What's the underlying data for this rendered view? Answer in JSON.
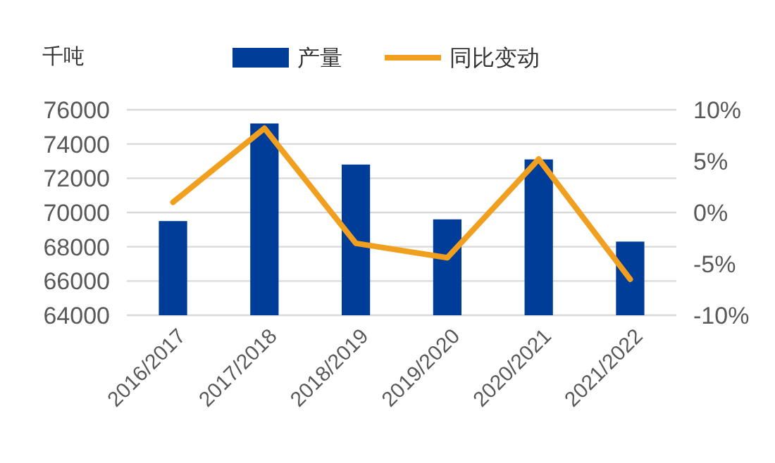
{
  "chart_data": {
    "type": "bar",
    "ylabel": "千吨",
    "categories": [
      "2016/2017",
      "2017/2018",
      "2018/2019",
      "2019/2020",
      "2020/2021",
      "2021/2022"
    ],
    "series": [
      {
        "name": "产量",
        "color": "#003d99",
        "values": [
          69500,
          75200,
          72800,
          69600,
          73100,
          68300
        ]
      },
      {
        "name": "同比变动",
        "type": "line",
        "axis": "y2",
        "color": "#f0a01e",
        "values": [
          1,
          8.2,
          -3,
          -4.4,
          5.2,
          -6.5
        ]
      }
    ],
    "ylim": [
      64000,
      76000
    ],
    "yticks": [
      64000,
      66000,
      68000,
      70000,
      72000,
      74000,
      76000
    ],
    "y2lim": [
      -10,
      10
    ],
    "y2ticks": [
      {
        "value": -10,
        "label": "-10%"
      },
      {
        "value": -5,
        "label": "-5%"
      },
      {
        "value": 0,
        "label": "0%"
      },
      {
        "value": 5,
        "label": "5%"
      },
      {
        "value": 10,
        "label": "10%"
      }
    ],
    "grid": "y",
    "legend": "top",
    "marker": "none",
    "line_style": "solid"
  }
}
